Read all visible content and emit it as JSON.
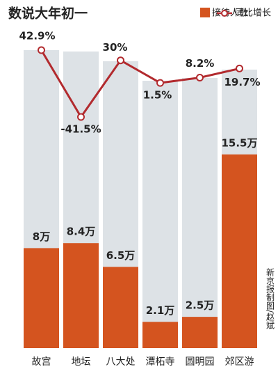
{
  "chart_data": {
    "type": "bar",
    "title": "数说大年初一",
    "categories": [
      "故宫",
      "地坛",
      "八大处",
      "潭柘寺",
      "圆明园",
      "郊区游"
    ],
    "series": [
      {
        "name": "接待人数",
        "type": "bar",
        "color": "#d4541f",
        "values": [
          8,
          8.4,
          6.5,
          2.1,
          2.5,
          15.5
        ],
        "value_labels": [
          "8万",
          "8.4万",
          "6.5万",
          "2.1万",
          "2.5万",
          "15.5万"
        ]
      },
      {
        "name": "同比增长",
        "type": "line",
        "axis": "y2",
        "color": "#b22a2e",
        "values": [
          42.9,
          -41.5,
          30,
          1.5,
          8.2,
          19.7
        ],
        "value_labels": [
          "42.9%",
          "-41.5%",
          "30%",
          "1.5%",
          "8.2%",
          "19.7%"
        ]
      }
    ],
    "credit": "新京报制图/赵斌"
  }
}
